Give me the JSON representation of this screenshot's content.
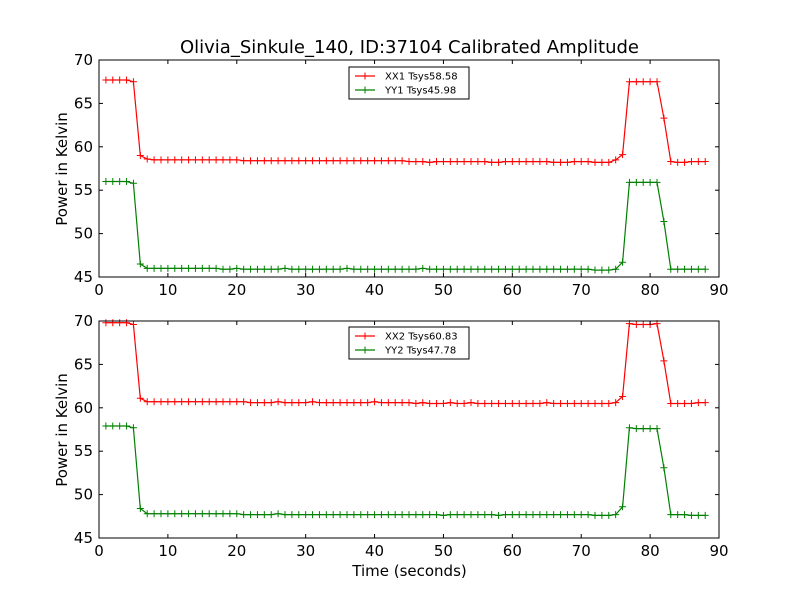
{
  "chart_data": [
    {
      "type": "line",
      "title": "Olivia_Sinkule_140, ID:37104 Calibrated Amplitude",
      "xlabel": "",
      "ylabel": "Power in Kelvin",
      "xlim": [
        0,
        90
      ],
      "ylim": [
        45,
        70
      ],
      "xticks": [
        0,
        10,
        20,
        30,
        40,
        50,
        60,
        70,
        80,
        90
      ],
      "yticks": [
        45,
        50,
        55,
        60,
        65,
        70
      ],
      "grid": false,
      "legend_position": "top-center",
      "x": [
        1,
        2,
        3,
        4,
        5,
        6,
        7,
        8,
        9,
        10,
        11,
        12,
        13,
        14,
        15,
        16,
        17,
        18,
        19,
        20,
        21,
        22,
        23,
        24,
        25,
        26,
        27,
        28,
        29,
        30,
        31,
        32,
        33,
        34,
        35,
        36,
        37,
        38,
        39,
        40,
        41,
        42,
        43,
        44,
        45,
        46,
        47,
        48,
        49,
        50,
        51,
        52,
        53,
        54,
        55,
        56,
        57,
        58,
        59,
        60,
        61,
        62,
        63,
        64,
        65,
        66,
        67,
        68,
        69,
        70,
        71,
        72,
        73,
        74,
        75,
        76,
        77,
        78,
        79,
        80,
        81,
        82,
        83,
        84,
        85,
        86,
        87,
        88
      ],
      "series": [
        {
          "name": "XX1 Tsys58.58",
          "color": "#ff0000",
          "values": [
            67.7,
            67.7,
            67.7,
            67.7,
            67.5,
            59.0,
            58.6,
            58.5,
            58.5,
            58.5,
            58.5,
            58.5,
            58.5,
            58.5,
            58.5,
            58.5,
            58.5,
            58.5,
            58.5,
            58.5,
            58.4,
            58.4,
            58.4,
            58.4,
            58.4,
            58.4,
            58.4,
            58.4,
            58.4,
            58.4,
            58.4,
            58.4,
            58.4,
            58.4,
            58.4,
            58.4,
            58.4,
            58.4,
            58.4,
            58.4,
            58.4,
            58.4,
            58.4,
            58.4,
            58.3,
            58.3,
            58.3,
            58.2,
            58.3,
            58.3,
            58.3,
            58.3,
            58.3,
            58.3,
            58.3,
            58.3,
            58.2,
            58.2,
            58.3,
            58.3,
            58.3,
            58.3,
            58.3,
            58.3,
            58.3,
            58.2,
            58.2,
            58.2,
            58.3,
            58.3,
            58.3,
            58.2,
            58.2,
            58.2,
            58.5,
            59.1,
            67.5,
            67.5,
            67.5,
            67.5,
            67.5,
            63.3,
            58.3,
            58.2,
            58.2,
            58.3,
            58.3,
            58.3
          ]
        },
        {
          "name": "YY1 Tsys45.98",
          "color": "#008000",
          "values": [
            56.0,
            56.0,
            56.0,
            56.0,
            55.8,
            46.5,
            46.0,
            46.0,
            46.0,
            46.0,
            46.0,
            46.0,
            46.0,
            46.0,
            46.0,
            46.0,
            46.0,
            45.9,
            45.9,
            46.0,
            45.9,
            45.9,
            45.9,
            45.9,
            45.9,
            45.9,
            46.0,
            45.9,
            45.9,
            45.9,
            45.9,
            45.9,
            45.9,
            45.9,
            45.9,
            46.0,
            45.9,
            45.9,
            45.9,
            45.9,
            45.9,
            45.9,
            45.9,
            45.9,
            45.9,
            45.9,
            46.0,
            45.9,
            45.9,
            45.9,
            45.9,
            45.9,
            45.9,
            45.9,
            45.9,
            45.9,
            45.9,
            45.9,
            45.9,
            45.9,
            45.9,
            45.9,
            45.9,
            45.9,
            45.9,
            45.9,
            45.9,
            45.9,
            45.9,
            45.9,
            45.9,
            45.8,
            45.8,
            45.8,
            45.9,
            46.7,
            55.9,
            55.9,
            55.9,
            55.9,
            55.9,
            51.4,
            45.9,
            45.9,
            45.9,
            45.9,
            45.9,
            45.9
          ]
        }
      ]
    },
    {
      "type": "line",
      "title": "",
      "xlabel": "Time (seconds)",
      "ylabel": "Power in Kelvin",
      "xlim": [
        0,
        90
      ],
      "ylim": [
        45,
        70
      ],
      "xticks": [
        0,
        10,
        20,
        30,
        40,
        50,
        60,
        70,
        80,
        90
      ],
      "yticks": [
        45,
        50,
        55,
        60,
        65,
        70
      ],
      "grid": false,
      "legend_position": "top-center",
      "x": [
        1,
        2,
        3,
        4,
        5,
        6,
        7,
        8,
        9,
        10,
        11,
        12,
        13,
        14,
        15,
        16,
        17,
        18,
        19,
        20,
        21,
        22,
        23,
        24,
        25,
        26,
        27,
        28,
        29,
        30,
        31,
        32,
        33,
        34,
        35,
        36,
        37,
        38,
        39,
        40,
        41,
        42,
        43,
        44,
        45,
        46,
        47,
        48,
        49,
        50,
        51,
        52,
        53,
        54,
        55,
        56,
        57,
        58,
        59,
        60,
        61,
        62,
        63,
        64,
        65,
        66,
        67,
        68,
        69,
        70,
        71,
        72,
        73,
        74,
        75,
        76,
        77,
        78,
        79,
        80,
        81,
        82,
        83,
        84,
        85,
        86,
        87,
        88
      ],
      "series": [
        {
          "name": "XX2 Tsys60.83",
          "color": "#ff0000",
          "values": [
            69.8,
            69.8,
            69.8,
            69.8,
            69.6,
            61.1,
            60.7,
            60.7,
            60.7,
            60.7,
            60.7,
            60.7,
            60.7,
            60.7,
            60.7,
            60.7,
            60.7,
            60.7,
            60.7,
            60.7,
            60.7,
            60.6,
            60.6,
            60.6,
            60.6,
            60.7,
            60.6,
            60.6,
            60.6,
            60.6,
            60.7,
            60.6,
            60.6,
            60.6,
            60.6,
            60.6,
            60.6,
            60.6,
            60.6,
            60.7,
            60.6,
            60.6,
            60.6,
            60.6,
            60.6,
            60.5,
            60.6,
            60.5,
            60.5,
            60.5,
            60.6,
            60.5,
            60.5,
            60.6,
            60.5,
            60.5,
            60.5,
            60.5,
            60.5,
            60.5,
            60.5,
            60.5,
            60.5,
            60.5,
            60.6,
            60.5,
            60.5,
            60.5,
            60.5,
            60.5,
            60.5,
            60.5,
            60.5,
            60.5,
            60.6,
            61.3,
            69.7,
            69.6,
            69.6,
            69.6,
            69.7,
            65.4,
            60.5,
            60.5,
            60.5,
            60.5,
            60.6,
            60.6
          ]
        },
        {
          "name": "YY2 Tsys47.78",
          "color": "#008000",
          "values": [
            57.9,
            57.9,
            57.9,
            57.9,
            57.7,
            48.4,
            47.8,
            47.8,
            47.8,
            47.8,
            47.8,
            47.8,
            47.8,
            47.8,
            47.8,
            47.8,
            47.8,
            47.8,
            47.8,
            47.8,
            47.7,
            47.7,
            47.7,
            47.7,
            47.7,
            47.8,
            47.7,
            47.7,
            47.7,
            47.7,
            47.7,
            47.7,
            47.7,
            47.7,
            47.7,
            47.7,
            47.7,
            47.7,
            47.7,
            47.7,
            47.7,
            47.7,
            47.7,
            47.7,
            47.7,
            47.7,
            47.7,
            47.7,
            47.7,
            47.6,
            47.7,
            47.7,
            47.7,
            47.7,
            47.7,
            47.7,
            47.7,
            47.6,
            47.7,
            47.7,
            47.7,
            47.7,
            47.7,
            47.7,
            47.7,
            47.7,
            47.7,
            47.7,
            47.7,
            47.7,
            47.7,
            47.6,
            47.6,
            47.6,
            47.7,
            48.6,
            57.7,
            57.6,
            57.6,
            57.6,
            57.6,
            53.1,
            47.7,
            47.7,
            47.7,
            47.6,
            47.6,
            47.6
          ]
        }
      ]
    }
  ]
}
